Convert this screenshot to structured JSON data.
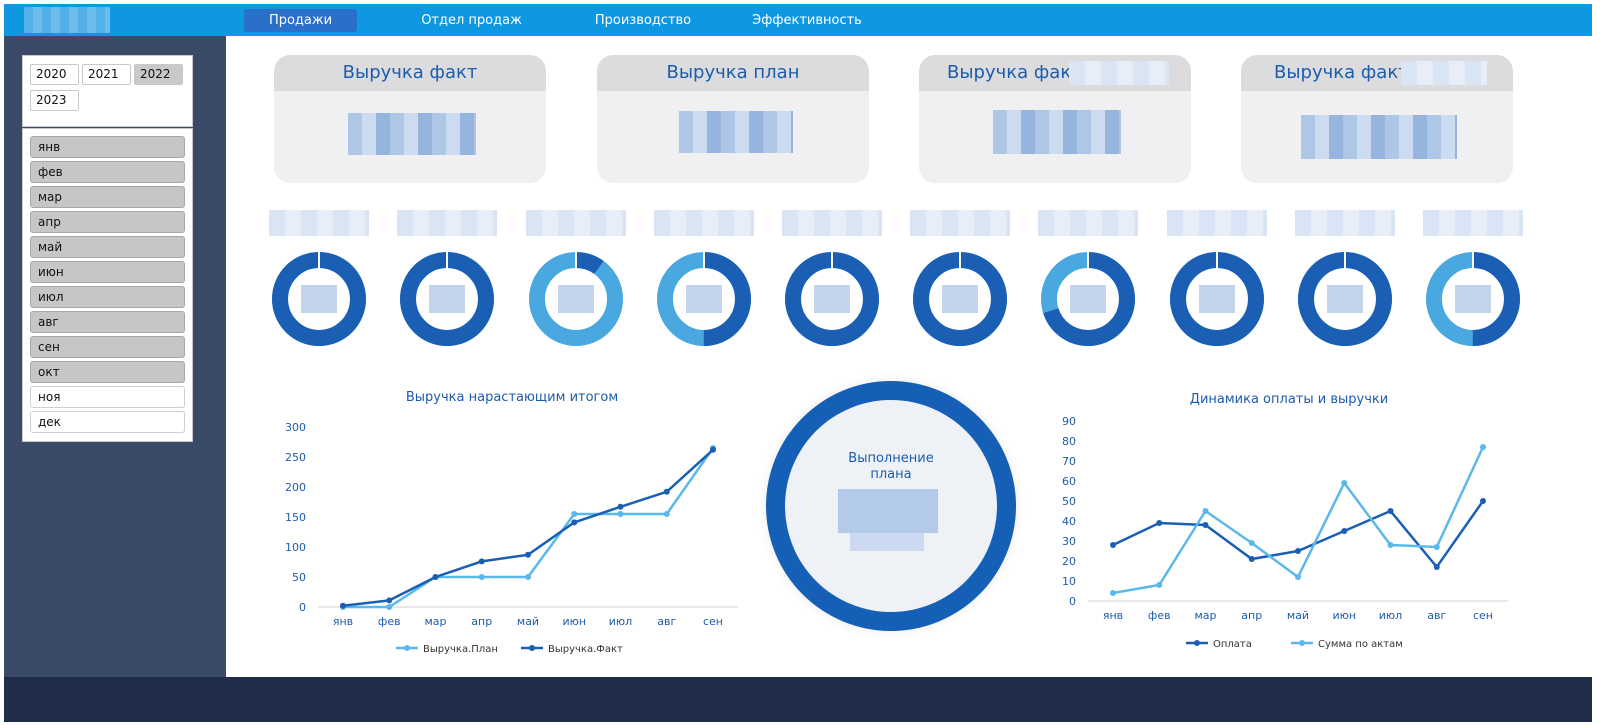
{
  "nav": {
    "items": [
      {
        "label": "Продажи",
        "active": true
      },
      {
        "label": "Отдел продаж",
        "active": false
      },
      {
        "label": "Производство",
        "active": false
      },
      {
        "label": "Эффективность",
        "active": false
      }
    ]
  },
  "filters": {
    "years": [
      {
        "label": "2020",
        "selected": false
      },
      {
        "label": "2021",
        "selected": false
      },
      {
        "label": "2022",
        "selected": true
      },
      {
        "label": "2023",
        "selected": false
      }
    ],
    "months": [
      {
        "label": "янв",
        "selected": true
      },
      {
        "label": "фев",
        "selected": true
      },
      {
        "label": "мар",
        "selected": true
      },
      {
        "label": "апр",
        "selected": true
      },
      {
        "label": "май",
        "selected": true
      },
      {
        "label": "июн",
        "selected": true
      },
      {
        "label": "июл",
        "selected": true
      },
      {
        "label": "авг",
        "selected": true
      },
      {
        "label": "сен",
        "selected": true
      },
      {
        "label": "окт",
        "selected": true
      },
      {
        "label": "ноя",
        "selected": false
      },
      {
        "label": "дек",
        "selected": false
      }
    ]
  },
  "kpis": [
    {
      "title": "Выручка факт"
    },
    {
      "title": "Выручка план"
    },
    {
      "title": "Выручка факт"
    },
    {
      "title": "Выручка факт"
    }
  ],
  "donuts": [
    {
      "fraction": 1.0
    },
    {
      "fraction": 1.0
    },
    {
      "fraction": 0.1
    },
    {
      "fraction": 0.5
    },
    {
      "fraction": 1.0
    },
    {
      "fraction": 1.0
    },
    {
      "fraction": 0.7
    },
    {
      "fraction": 1.0
    },
    {
      "fraction": 1.0
    },
    {
      "fraction": 0.5
    }
  ],
  "colors": {
    "dark_blue": "#1a5fb4",
    "light_blue": "#4aa8e0",
    "topbar": "#0e98e2",
    "sidebar": "#3b4a69",
    "footer": "#1f2d4a"
  },
  "center_gauge": {
    "title": "Выполнение плана"
  },
  "chart_data": [
    {
      "type": "line",
      "title": "Выручка нарастающим итогом",
      "categories": [
        "янв",
        "фев",
        "мар",
        "апр",
        "май",
        "июн",
        "июл",
        "авг",
        "сен"
      ],
      "ylim": [
        0,
        300
      ],
      "yticks": [
        0,
        50,
        100,
        150,
        200,
        250,
        300
      ],
      "legend_position": "bottom",
      "series": [
        {
          "name": "Выручка.План",
          "color": "#5ab8ea",
          "values": [
            0,
            0,
            50,
            50,
            50,
            155,
            155,
            155,
            265
          ]
        },
        {
          "name": "Выручка.Факт",
          "color": "#1a5fb4",
          "values": [
            2,
            11,
            50,
            76,
            87,
            141,
            167,
            192,
            262
          ]
        }
      ]
    },
    {
      "type": "line",
      "title": "Динамика оплаты и выручки",
      "categories": [
        "янв",
        "фев",
        "мар",
        "апр",
        "май",
        "июн",
        "июл",
        "авг",
        "сен"
      ],
      "ylim": [
        0,
        90
      ],
      "yticks": [
        0,
        10,
        20,
        30,
        40,
        50,
        60,
        70,
        80,
        90
      ],
      "legend_position": "bottom",
      "series": [
        {
          "name": "Оплата",
          "color": "#1a5fb4",
          "values": [
            28,
            39,
            38,
            21,
            25,
            35,
            45,
            17,
            50
          ]
        },
        {
          "name": "Сумма по актам",
          "color": "#5ab8ea",
          "values": [
            4,
            8,
            45,
            29,
            12,
            59,
            28,
            27,
            77
          ]
        }
      ]
    }
  ]
}
